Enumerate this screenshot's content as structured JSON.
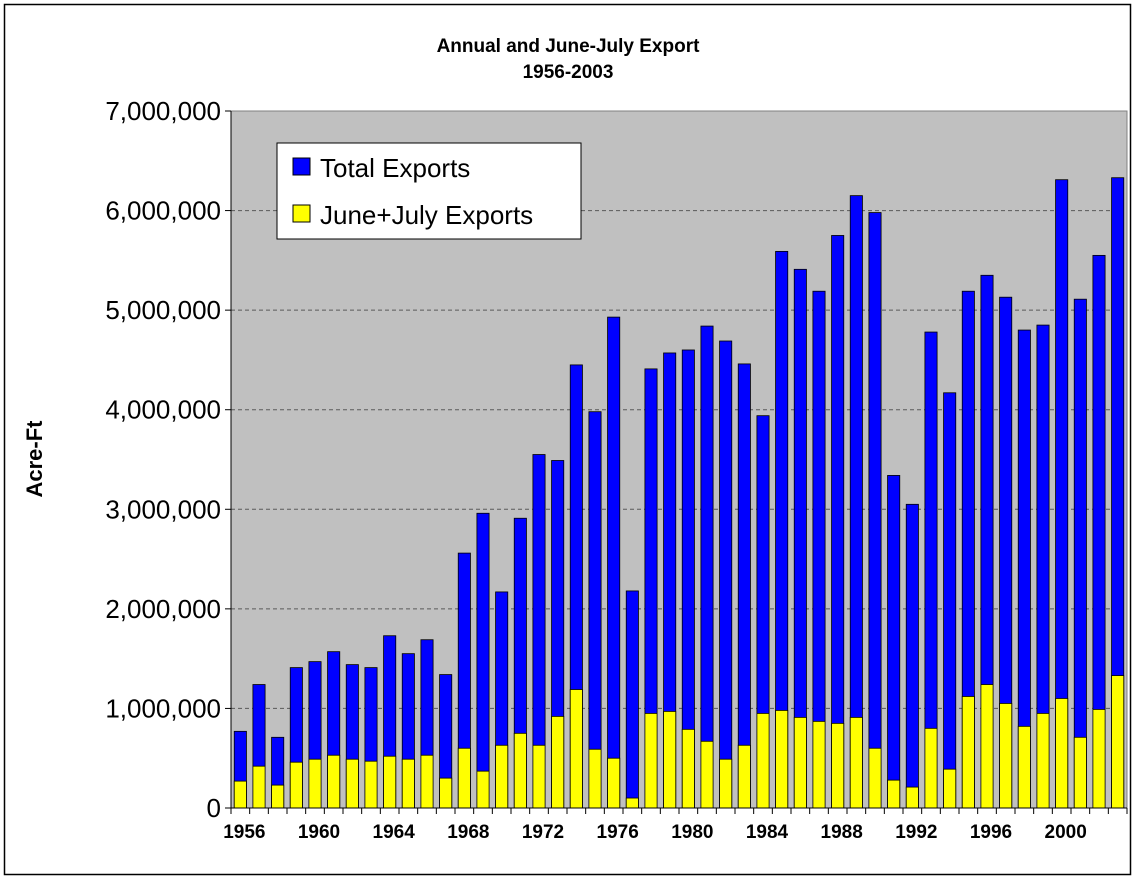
{
  "chart_data": {
    "type": "bar",
    "title": "Annual and June-July Export",
    "subtitle": "1956-2003",
    "xlabel": "",
    "ylabel": "Acre-Ft",
    "ylim": [
      0,
      7000000
    ],
    "ytick_labels": [
      "0",
      "1,000,000",
      "2,000,000",
      "3,000,000",
      "4,000,000",
      "5,000,000",
      "6,000,000",
      "7,000,000"
    ],
    "xtick_labels": [
      "1956",
      "1960",
      "1964",
      "1968",
      "1972",
      "1976",
      "1980",
      "1984",
      "1988",
      "1992",
      "1996",
      "2000"
    ],
    "grid": "horizontal dashed",
    "legend_position": "top-left",
    "colors": {
      "plot_background": "#c0c0c0",
      "Total Exports": "#0000ff",
      "June+July Exports": "#ffff00"
    },
    "categories": [
      "1956",
      "1957",
      "1958",
      "1959",
      "1960",
      "1961",
      "1962",
      "1963",
      "1964",
      "1965",
      "1966",
      "1967",
      "1968",
      "1969",
      "1970",
      "1971",
      "1972",
      "1973",
      "1974",
      "1975",
      "1976",
      "1977",
      "1978",
      "1979",
      "1980",
      "1981",
      "1982",
      "1983",
      "1984",
      "1985",
      "1986",
      "1987",
      "1988",
      "1989",
      "1990",
      "1991",
      "1992",
      "1993",
      "1994",
      "1995",
      "1996",
      "1997",
      "1998",
      "1999",
      "2000",
      "2001",
      "2002",
      "2003"
    ],
    "series": [
      {
        "name": "Total Exports",
        "values": [
          770000,
          1240000,
          710000,
          1410000,
          1470000,
          1570000,
          1440000,
          1410000,
          1730000,
          1550000,
          1690000,
          1340000,
          2560000,
          2960000,
          2170000,
          2910000,
          3550000,
          3490000,
          4450000,
          3980000,
          4930000,
          2180000,
          4410000,
          4570000,
          4600000,
          4840000,
          4690000,
          4460000,
          3940000,
          5590000,
          5410000,
          5190000,
          5750000,
          6150000,
          5980000,
          3340000,
          3050000,
          4780000,
          4170000,
          5190000,
          5350000,
          5130000,
          4800000,
          4850000,
          6310000,
          5110000,
          5550000,
          6330000
        ]
      },
      {
        "name": "June+July Exports",
        "values": [
          270000,
          420000,
          230000,
          460000,
          490000,
          530000,
          490000,
          470000,
          520000,
          490000,
          530000,
          300000,
          600000,
          370000,
          630000,
          750000,
          630000,
          920000,
          1190000,
          590000,
          500000,
          100000,
          950000,
          970000,
          790000,
          670000,
          490000,
          630000,
          950000,
          980000,
          910000,
          870000,
          850000,
          910000,
          600000,
          280000,
          210000,
          800000,
          390000,
          1120000,
          1240000,
          1050000,
          820000,
          950000,
          1100000,
          710000,
          990000,
          1330000
        ]
      }
    ]
  }
}
